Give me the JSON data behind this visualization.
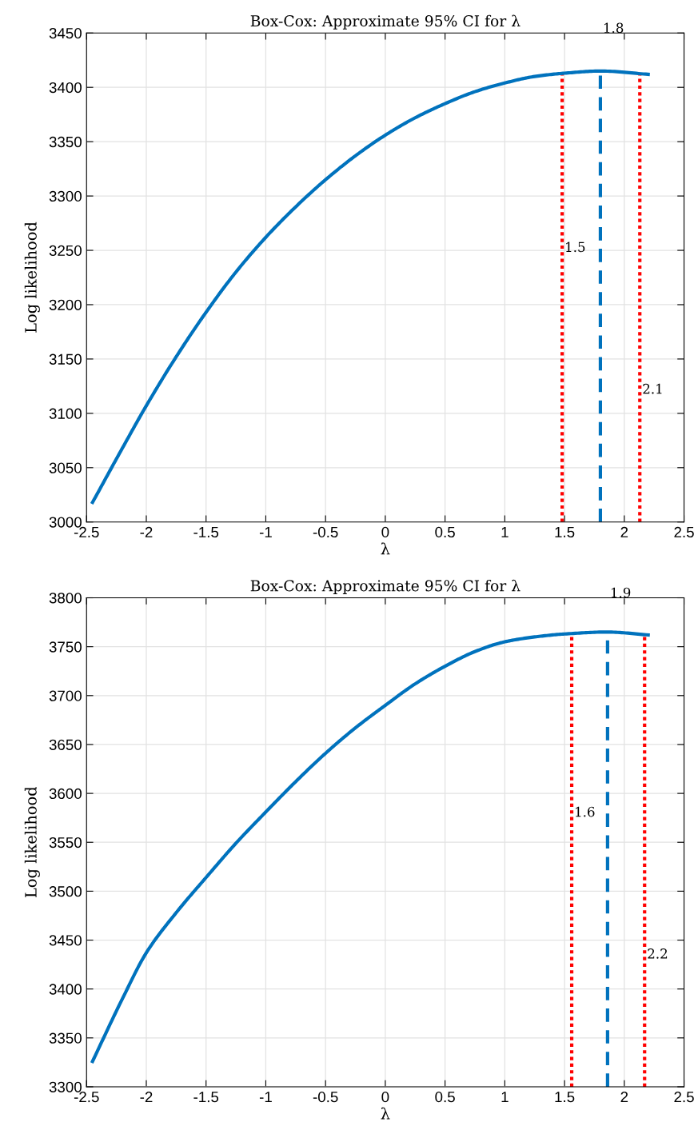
{
  "chart_data": [
    {
      "type": "line",
      "title": "Box-Cox: Approximate 95% CI for λ",
      "xlabel": "λ",
      "ylabel": "Log likelihood",
      "series": [
        {
          "color": "#0072bd",
          "x": [
            -2.45,
            -2.2,
            -2,
            -1.75,
            -1.5,
            -1.25,
            -1,
            -0.75,
            -0.5,
            -0.25,
            0,
            0.25,
            0.5,
            0.75,
            1,
            1.25,
            1.5,
            1.8,
            2.2
          ],
          "values": [
            3018,
            3068,
            3107,
            3152,
            3193,
            3230,
            3262,
            3290,
            3315,
            3337,
            3356,
            3372,
            3385,
            3396,
            3404,
            3410,
            3413,
            3415,
            3412
          ]
        }
      ],
      "ref_lines": [
        {
          "axis": "x",
          "value": 1.48,
          "label": "1.5",
          "color": "#ff0000",
          "line_style": "dotted"
        },
        {
          "axis": "x",
          "value": 1.8,
          "label": "1.8",
          "color": "#0072bd",
          "line_style": "dashed"
        },
        {
          "axis": "x",
          "value": 2.13,
          "label": "2.1",
          "color": "#ff0000",
          "line_style": "dotted"
        }
      ],
      "xlim": [
        -2.5,
        2.5
      ],
      "xticks": [
        -2.5,
        -2,
        -1.5,
        -1,
        -0.5,
        0,
        0.5,
        1,
        1.5,
        2,
        2.5
      ],
      "ylim": [
        3000,
        3450
      ],
      "yticks": [
        3000,
        3050,
        3100,
        3150,
        3200,
        3250,
        3300,
        3350,
        3400,
        3450
      ],
      "grid": true,
      "line_style": "solid",
      "marker": "none"
    },
    {
      "type": "line",
      "title": "Box-Cox: Approximate 95% CI for λ",
      "xlabel": "λ",
      "ylabel": "Log likelihood",
      "series": [
        {
          "color": "#0072bd",
          "x": [
            -2.45,
            -2.2,
            -2,
            -1.75,
            -1.5,
            -1.25,
            -1,
            -0.75,
            -0.5,
            -0.25,
            0,
            0.25,
            0.5,
            0.75,
            1,
            1.25,
            1.5,
            1.86,
            2.2
          ],
          "values": [
            3326,
            3390,
            3437,
            3478,
            3514,
            3549,
            3581,
            3612,
            3641,
            3667,
            3690,
            3712,
            3730,
            3745,
            3755,
            3760,
            3763,
            3765,
            3762
          ]
        }
      ],
      "ref_lines": [
        {
          "axis": "x",
          "value": 1.56,
          "label": "1.6",
          "color": "#ff0000",
          "line_style": "dotted"
        },
        {
          "axis": "x",
          "value": 1.86,
          "label": "1.9",
          "color": "#0072bd",
          "line_style": "dashed"
        },
        {
          "axis": "x",
          "value": 2.17,
          "label": "2.2",
          "color": "#ff0000",
          "line_style": "dotted"
        }
      ],
      "xlim": [
        -2.5,
        2.5
      ],
      "xticks": [
        -2.5,
        -2,
        -1.5,
        -1,
        -0.5,
        0,
        0.5,
        1,
        1.5,
        2,
        2.5
      ],
      "ylim": [
        3300,
        3800
      ],
      "yticks": [
        3300,
        3350,
        3400,
        3450,
        3500,
        3550,
        3600,
        3650,
        3700,
        3750,
        3800
      ],
      "grid": true,
      "line_style": "solid",
      "marker": "none"
    }
  ]
}
